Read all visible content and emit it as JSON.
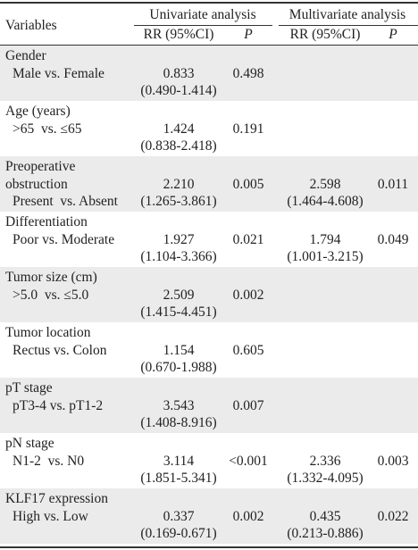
{
  "header": {
    "variables": "Variables",
    "univariate": "Univariate analysis",
    "multivariate": "Multivariate analysis",
    "rr": "RR (95%CI)",
    "p": "P",
    "rr2": "RR (95%CI)",
    "p2": "P"
  },
  "rows": [
    {
      "label": [
        "Gender"
      ],
      "sub": "Male vs. Female",
      "uni_rr": "0.833",
      "uni_ci": "(0.490-1.414)",
      "uni_p": "0.498"
    },
    {
      "label": [
        "Age (years)"
      ],
      "sub": ">65  vs. ≤65",
      "uni_rr": "1.424",
      "uni_ci": "(0.838-2.418)",
      "uni_p": "0.191"
    },
    {
      "label": [
        "Preoperative",
        "obstruction"
      ],
      "sub": "Present  vs. Absent",
      "uni_rr": "2.210",
      "uni_ci": "(1.265-3.861)",
      "uni_p": "0.005",
      "multi_rr": "2.598",
      "multi_ci": "(1.464-4.608)",
      "multi_p": "0.011"
    },
    {
      "label": [
        "Differentiation"
      ],
      "sub": "Poor vs. Moderate",
      "uni_rr": "1.927",
      "uni_ci": "(1.104-3.366)",
      "uni_p": "0.021",
      "multi_rr": "1.794",
      "multi_ci": "(1.001-3.215)",
      "multi_p": "0.049"
    },
    {
      "label": [
        "Tumor size (cm)"
      ],
      "sub": ">5.0  vs. ≤5.0",
      "uni_rr": "2.509",
      "uni_ci": "(1.415-4.451)",
      "uni_p": "0.002"
    },
    {
      "label": [
        "Tumor location"
      ],
      "sub": "Rectus vs. Colon",
      "uni_rr": "1.154",
      "uni_ci": "(0.670-1.988)",
      "uni_p": "0.605"
    },
    {
      "label": [
        "pT stage"
      ],
      "sub": "pT3-4 vs. pT1-2",
      "uni_rr": "3.543",
      "uni_ci": "(1.408-8.916)",
      "uni_p": "0.007"
    },
    {
      "label": [
        "pN stage"
      ],
      "sub": "N1-2  vs. N0",
      "uni_rr": "3.114",
      "uni_ci": "(1.851-5.341)",
      "uni_p": "<0.001",
      "multi_rr": "2.336",
      "multi_ci": "(1.332-4.095)",
      "multi_p": "0.003"
    },
    {
      "label": [
        "KLF17 expression"
      ],
      "sub": "High vs. Low",
      "uni_rr": "0.337",
      "uni_ci": "(0.169-0.671)",
      "uni_p": "0.002",
      "multi_rr": "0.435",
      "multi_ci": "(0.213-0.886)",
      "multi_p": "0.022"
    }
  ]
}
